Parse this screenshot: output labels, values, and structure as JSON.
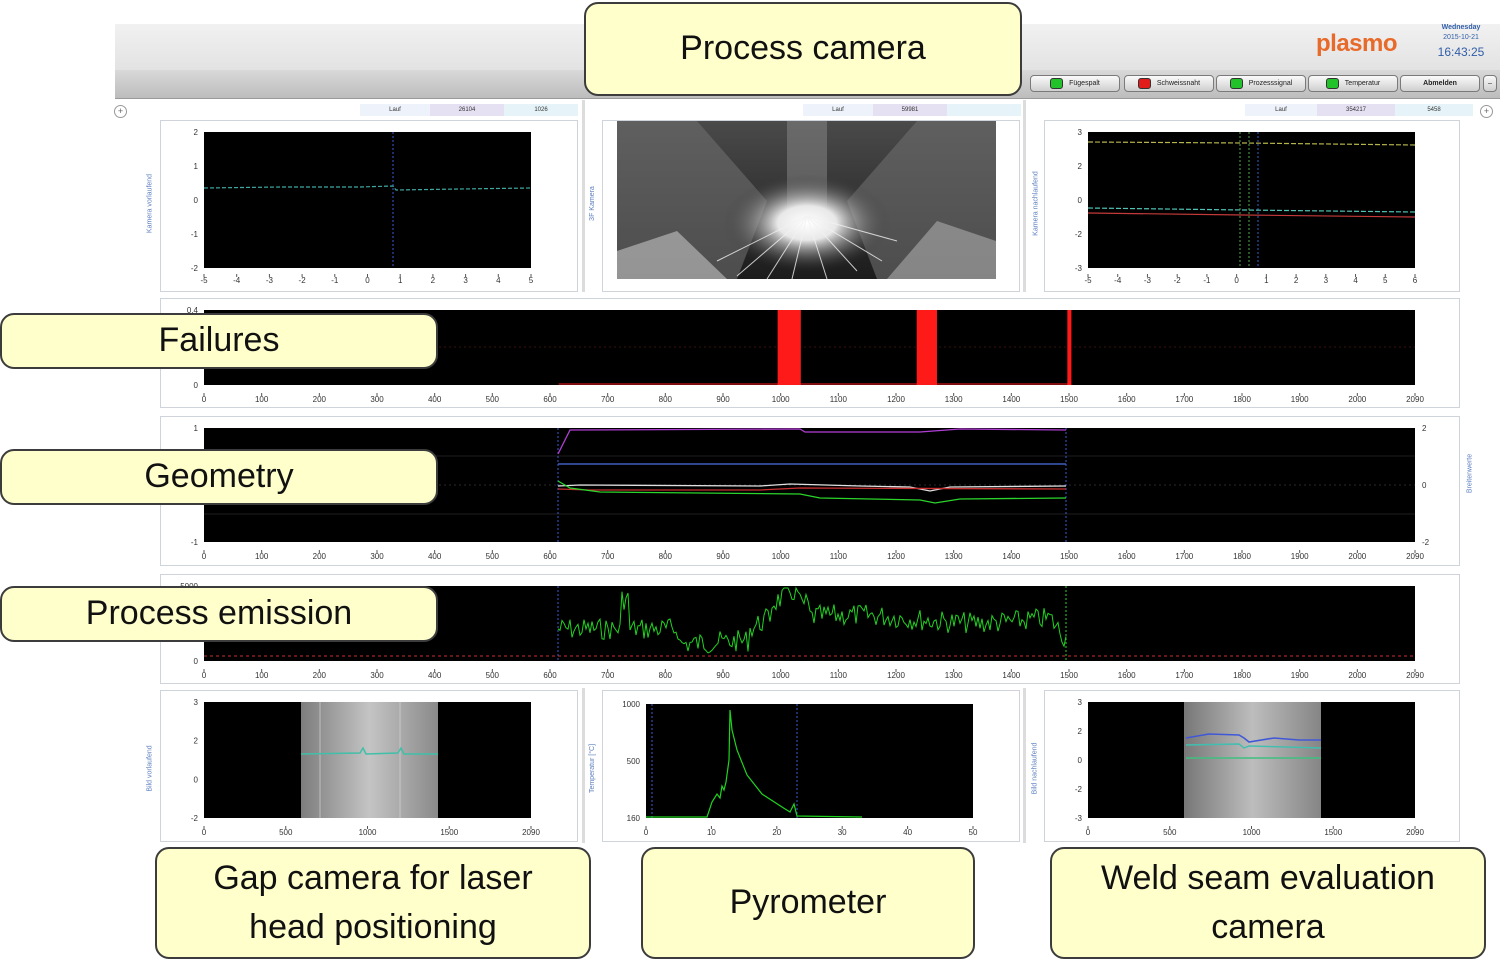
{
  "header": {
    "logo": "plasmo",
    "weekday": "Wednesday",
    "date": "2015-10-21",
    "time": "16:43:25",
    "status_buttons": [
      {
        "label": "Fügespalt",
        "led": "#22c22a"
      },
      {
        "label": "Schweissnaht",
        "led": "#e21b1b"
      },
      {
        "label": "Prozesssignal",
        "led": "#22c22a"
      },
      {
        "label": "Temperatur",
        "led": "#22c22a"
      }
    ],
    "logout_label": "Abmelden"
  },
  "panels": {
    "gap_camera_top": {
      "table": [
        "Lauf",
        "26104",
        "1026"
      ],
      "ylabel": "Kamera vorlaufend",
      "xticks": [
        "-5",
        "-4",
        "-3",
        "-2",
        "-1",
        "0",
        "1",
        "2",
        "3",
        "4",
        "5"
      ],
      "yticks": [
        "2",
        "1",
        "0",
        "-1",
        "-2"
      ]
    },
    "process_camera": {
      "table": [
        "Lauf",
        "59981",
        ""
      ],
      "ylabel": "3F Kamera"
    },
    "weld_camera_top": {
      "table": [
        "Lauf",
        "354217",
        "5458"
      ],
      "ylabel": "Kamera nachlaufend",
      "xticks": [
        "-5",
        "-4",
        "-3",
        "-2",
        "-1",
        "0",
        "1",
        "2",
        "3",
        "4",
        "5",
        "6"
      ],
      "yticks": [
        "3",
        "2",
        "0",
        "-2",
        "-3"
      ]
    },
    "failures": {
      "yticks": [
        "0.4",
        "0"
      ],
      "red_spikes": [
        {
          "from": 990,
          "to": 1030
        },
        {
          "from": 1230,
          "to": 1265
        },
        {
          "from": 1490,
          "to": 1497
        }
      ]
    },
    "geometry": {
      "ylabel_right": "Breitenwerte",
      "yticks_left": [
        "1",
        "-1"
      ],
      "yticks_right": [
        "2",
        "0",
        "-2"
      ]
    },
    "process_emission": {
      "yticks": [
        "5000",
        "0"
      ]
    },
    "gap_camera_bottom": {
      "ylabel": "Bild vorlaufend",
      "xticks": [
        "0",
        "500",
        "1000",
        "1500",
        "2090"
      ],
      "yticks": [
        "3",
        "2",
        "0",
        "-2"
      ]
    },
    "pyrometer": {
      "ylabel": "Temperatur [°C]",
      "xticks": [
        "0",
        "10",
        "20",
        "30",
        "40",
        "50"
      ],
      "yticks": [
        "1000",
        "500",
        "160"
      ]
    },
    "weld_camera_bottom": {
      "ylabel": "Bild nachlaufend",
      "xticks": [
        "0",
        "500",
        "1000",
        "1500",
        "2090"
      ],
      "yticks": [
        "3",
        "2",
        "0",
        "-2",
        "-3"
      ]
    }
  },
  "long_axis_ticks": [
    "0",
    "100",
    "200",
    "300",
    "400",
    "500",
    "600",
    "700",
    "800",
    "900",
    "1000",
    "1100",
    "1200",
    "1300",
    "1400",
    "1500",
    "1600",
    "1700",
    "1800",
    "1900",
    "2000",
    "2090"
  ],
  "callouts": {
    "process_camera": [
      "Process camera"
    ],
    "failures": [
      "Failures"
    ],
    "geometry": [
      "Geometry"
    ],
    "process_emission": [
      "Process emission"
    ],
    "gap_camera": [
      "Gap camera for laser",
      "head positioning"
    ],
    "pyrometer": [
      "Pyrometer"
    ],
    "weld_seam": [
      "Weld seam evaluation",
      "camera"
    ]
  },
  "colors": {
    "callout_fill": "#ffffcc",
    "plot_bg": "#000000",
    "accent_blue": "#2f5da9",
    "failure_red": "#ff1a1a",
    "emission_green": "#1fd41f"
  }
}
